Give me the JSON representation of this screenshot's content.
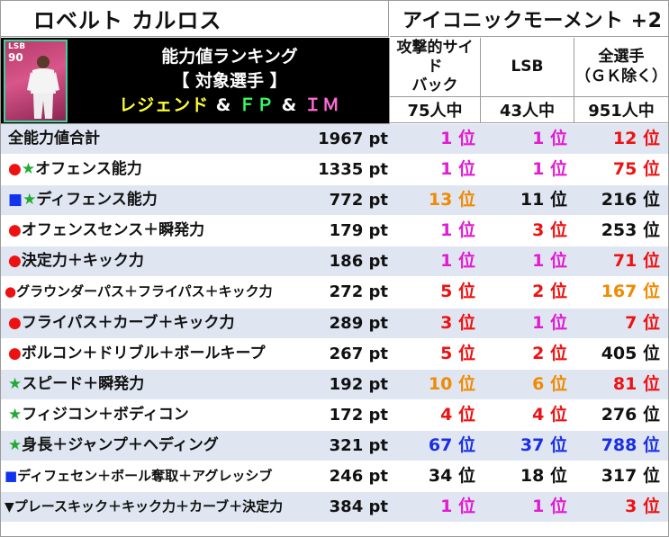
{
  "header": {
    "player_name": "ロベルト カルロス",
    "card_type": "アイコニックモーメント +2"
  },
  "card": {
    "position": "LSB",
    "rating": "90"
  },
  "panel": {
    "title_line1": "能力値ランキング",
    "title_line2": "【 対象選手 】",
    "target_legend": "レジェンド",
    "amp1": " & ",
    "target_fp": "ＦＰ",
    "amp2": " & ",
    "target_im": "ＩＭ"
  },
  "columns": [
    {
      "label": "攻撃的サイド\nバック",
      "count": "75人中"
    },
    {
      "label": "LSB",
      "count": "43人中"
    },
    {
      "label": "全選手\n（ＧＫ除く）",
      "count": "951人中"
    }
  ],
  "rank_unit": "位",
  "colors": {
    "magenta": "#e21ad2",
    "red": "#ee1111",
    "orange": "#f08a00",
    "blue": "#1a2ee6",
    "black": "#111111",
    "row_shade": "#dfe6f2"
  },
  "rows": [
    {
      "marks": [],
      "label": "全能力値合計",
      "value": "1967 pt",
      "ranks": [
        [
          "1",
          "magenta"
        ],
        [
          "1",
          "magenta"
        ],
        [
          "12",
          "red"
        ]
      ]
    },
    {
      "marks": [
        "red-dot",
        "star"
      ],
      "label": "オフェンス能力",
      "value": "1335 pt",
      "ranks": [
        [
          "1",
          "magenta"
        ],
        [
          "1",
          "magenta"
        ],
        [
          "75",
          "red"
        ]
      ]
    },
    {
      "marks": [
        "blue-square",
        "star"
      ],
      "label": "ディフェンス能力",
      "value": "772 pt",
      "ranks": [
        [
          "13",
          "orange"
        ],
        [
          "11",
          "black"
        ],
        [
          "216",
          "black"
        ]
      ]
    },
    {
      "marks": [
        "red-dot"
      ],
      "label": "オフェンスセンス＋瞬発力",
      "value": "179 pt",
      "ranks": [
        [
          "1",
          "magenta"
        ],
        [
          "3",
          "red"
        ],
        [
          "253",
          "black"
        ]
      ]
    },
    {
      "marks": [
        "red-dot"
      ],
      "label": "決定力＋キック力",
      "value": "186 pt",
      "ranks": [
        [
          "1",
          "magenta"
        ],
        [
          "1",
          "magenta"
        ],
        [
          "71",
          "red"
        ]
      ]
    },
    {
      "marks": [
        "red-dot"
      ],
      "label": "グラウンダーパス＋フライパス＋キック力",
      "value": "272 pt",
      "ranks": [
        [
          "5",
          "red"
        ],
        [
          "2",
          "red"
        ],
        [
          "167",
          "orange"
        ]
      ]
    },
    {
      "marks": [
        "red-dot"
      ],
      "label": "フライパス＋カーブ＋キック力",
      "value": "289 pt",
      "ranks": [
        [
          "3",
          "red"
        ],
        [
          "1",
          "magenta"
        ],
        [
          "7",
          "red"
        ]
      ]
    },
    {
      "marks": [
        "red-dot"
      ],
      "label": "ボルコン＋ドリブル＋ボールキープ",
      "value": "267 pt",
      "ranks": [
        [
          "5",
          "red"
        ],
        [
          "2",
          "red"
        ],
        [
          "405",
          "black"
        ]
      ]
    },
    {
      "marks": [
        "star"
      ],
      "label": "スピード＋瞬発力",
      "value": "192 pt",
      "ranks": [
        [
          "10",
          "orange"
        ],
        [
          "6",
          "orange"
        ],
        [
          "81",
          "red"
        ]
      ]
    },
    {
      "marks": [
        "star"
      ],
      "label": "フィジコン＋ボディコン",
      "value": "172 pt",
      "ranks": [
        [
          "4",
          "red"
        ],
        [
          "4",
          "red"
        ],
        [
          "276",
          "black"
        ]
      ]
    },
    {
      "marks": [
        "star"
      ],
      "label": "身長＋ジャンプ＋ヘディング",
      "value": "321 pt",
      "ranks": [
        [
          "67",
          "blue"
        ],
        [
          "37",
          "blue"
        ],
        [
          "788",
          "blue"
        ]
      ]
    },
    {
      "marks": [
        "blue-square"
      ],
      "label": "ディフェセン＋ボール奪取＋アグレッシブ",
      "value": "246 pt",
      "ranks": [
        [
          "34",
          "black"
        ],
        [
          "18",
          "black"
        ],
        [
          "317",
          "black"
        ]
      ]
    },
    {
      "marks": [
        "triangle-down"
      ],
      "label": "プレースキック＋キック力＋カーブ＋決定力",
      "value": "384 pt",
      "ranks": [
        [
          "1",
          "magenta"
        ],
        [
          "1",
          "magenta"
        ],
        [
          "3",
          "red"
        ]
      ]
    }
  ]
}
